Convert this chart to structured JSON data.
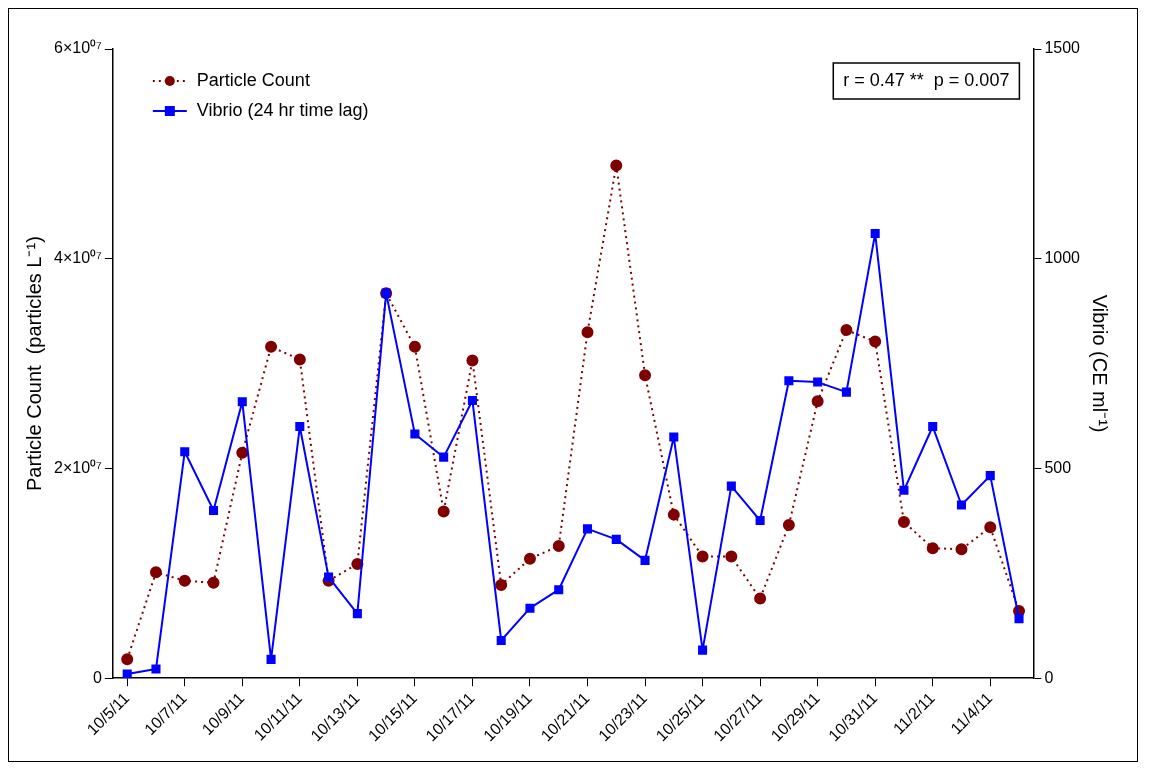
{
  "chart_data": {
    "type": "line",
    "ylabel": "Particle Count  (particles L⁻¹)",
    "y2label": "Vibrio (CE ml⁻¹)",
    "x": [
      "--10-05",
      "--10-06",
      "--10-07",
      "--10-08",
      "--10-09",
      "--10-10",
      "--10-11",
      "--10-12",
      "--10-13",
      "--10-14",
      "--10-15",
      "--10-16",
      "--10-17",
      "--10-18",
      "--10-19",
      "--10-20",
      "--10-21",
      "--10-22",
      "--10-23",
      "--10-24",
      "--10-25",
      "--10-26",
      "--10-27",
      "--10-28",
      "--10-29",
      "--10-30",
      "--10-31",
      "--11-01",
      "--11-02",
      "--11-03",
      "--11-04",
      "--11-05"
    ],
    "series": [
      {
        "name": "Particle Count",
        "color": "#800000",
        "marker": "circle",
        "line_style": "dotted",
        "values": [
          1800000,
          10100000,
          9300000,
          9100000,
          21500000,
          31600000,
          30400000,
          9300000,
          10900000,
          36700000,
          31600000,
          15900000,
          30300000,
          8900000,
          11400000,
          12600000,
          33000000,
          48900000,
          28900000,
          15600000,
          11600000,
          11600000,
          7600000,
          14600000,
          26400000,
          33200000,
          32100000,
          14900000,
          12400000,
          12300000,
          14400000,
          6400000
        ]
      },
      {
        "name": "Vibrio (24 hr time lag)",
        "color": "#0000ff",
        "marker": "square",
        "line_style": "solid",
        "axis": "y2",
        "values": [
          10,
          22,
          540,
          400,
          659,
          45,
          600,
          241,
          154,
          918,
          582,
          527,
          662,
          90,
          167,
          211,
          356,
          331,
          281,
          575,
          67,
          458,
          376,
          709,
          706,
          682,
          1060,
          448,
          600,
          413,
          483,
          142
        ]
      }
    ],
    "xlim": [
      "--10-04T12:00",
      "--11-05T12:00"
    ],
    "xticks": [
      {
        "value": "--10-05",
        "label": "10/5/11"
      },
      {
        "value": "--10-07",
        "label": "10/7/11"
      },
      {
        "value": "--10-09",
        "label": "10/9/11"
      },
      {
        "value": "--10-11",
        "label": "10/11/11"
      },
      {
        "value": "--10-13",
        "label": "10/13/11"
      },
      {
        "value": "--10-15",
        "label": "10/15/11"
      },
      {
        "value": "--10-17",
        "label": "10/17/11"
      },
      {
        "value": "--10-19",
        "label": "10/19/11"
      },
      {
        "value": "--10-21",
        "label": "10/21/11"
      },
      {
        "value": "--10-23",
        "label": "10/23/11"
      },
      {
        "value": "--10-25",
        "label": "10/25/11"
      },
      {
        "value": "--10-27",
        "label": "10/27/11"
      },
      {
        "value": "--10-29",
        "label": "10/29/11"
      },
      {
        "value": "--10-31",
        "label": "10/31/11"
      },
      {
        "value": "--11-02",
        "label": "11/2/11"
      },
      {
        "value": "--11-04",
        "label": "11/4/11"
      }
    ],
    "ylim": [
      0,
      60000000
    ],
    "yticks": [
      {
        "value": 0,
        "label": "0"
      },
      {
        "value": 20000000,
        "label": "2×10⁰⁷"
      },
      {
        "value": 40000000,
        "label": "4×10⁰⁷"
      },
      {
        "value": 60000000,
        "label": "6×10⁰⁷"
      }
    ],
    "y2lim": [
      0,
      1500
    ],
    "y2ticks": [
      0,
      500,
      1000,
      1500
    ],
    "annotations": [
      "r = 0.47 **  p = 0.007"
    ],
    "legend": "top left",
    "grid": false
  }
}
